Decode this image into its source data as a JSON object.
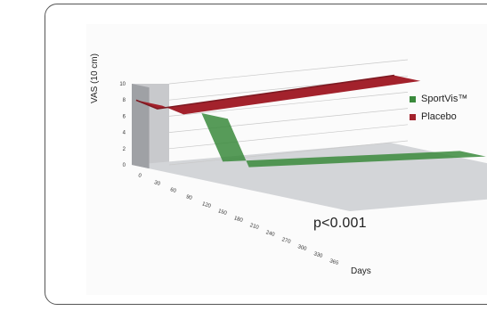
{
  "chart_data": {
    "type": "line",
    "view": "3d",
    "ylabel": "VAS (10 cm)",
    "xlabel": "Days",
    "ylim": [
      0,
      10
    ],
    "yticks": [
      "0",
      "2",
      "4",
      "6",
      "8",
      "10"
    ],
    "x_tick_labels": [
      "0",
      "30",
      "60",
      "90",
      "120",
      "150",
      "180",
      "210",
      "240",
      "270",
      "300",
      "330",
      "365"
    ],
    "annotation": "p<0.001",
    "legend_position": "right",
    "grid": true,
    "series": [
      {
        "name": "SportVis™",
        "color": "#3a8a3c",
        "x": [
          0,
          30,
          365
        ],
        "y": [
          8.2,
          2.0,
          0.8
        ]
      },
      {
        "name": "Placebo",
        "color": "#a3222c",
        "x": [
          0,
          30,
          365
        ],
        "y": [
          8.1,
          6.8,
          8.4
        ]
      }
    ]
  }
}
